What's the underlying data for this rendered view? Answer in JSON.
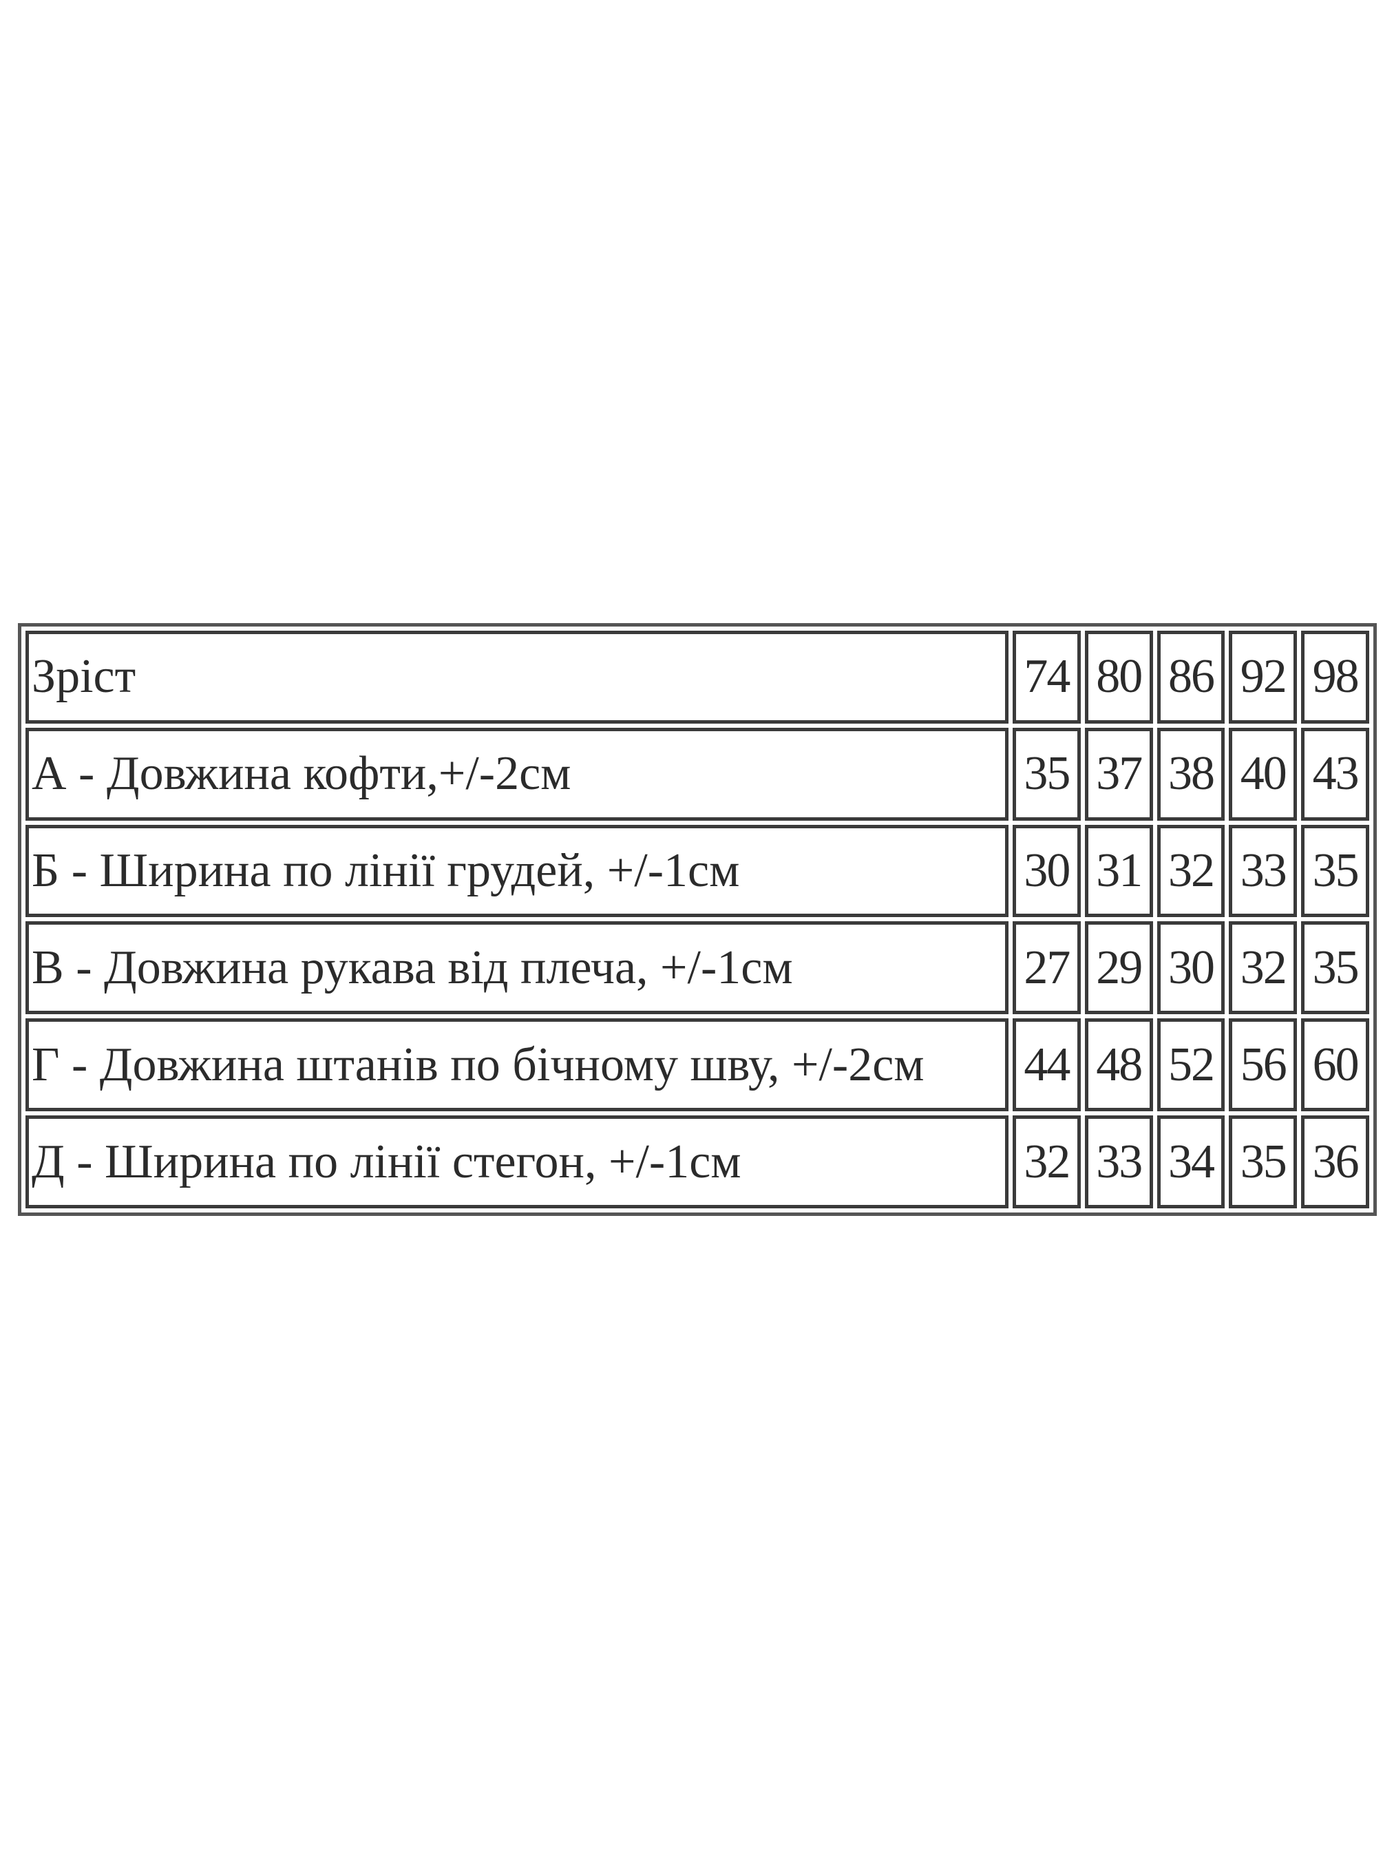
{
  "table": {
    "header": {
      "label": "Зріст",
      "values": [
        "74",
        "80",
        "86",
        "92",
        "98"
      ]
    },
    "rows": [
      {
        "label": "А - Довжина кофти,+/-2см",
        "values": [
          "35",
          "37",
          "38",
          "40",
          "43"
        ]
      },
      {
        "label": "Б - Ширина по лінії грудей, +/-1см",
        "values": [
          "30",
          "31",
          "32",
          "33",
          "35"
        ]
      },
      {
        "label": "В - Довжина рукава від плеча, +/-1см",
        "values": [
          "27",
          "29",
          "30",
          "32",
          "35"
        ]
      },
      {
        "label": "Г - Довжина штанів по бічному шву, +/-2см",
        "values": [
          "44",
          "48",
          "52",
          "56",
          "60"
        ]
      },
      {
        "label": "Д - Ширина по лінії стегон, +/-1см",
        "values": [
          "32",
          "33",
          "34",
          "35",
          "36"
        ]
      }
    ]
  }
}
